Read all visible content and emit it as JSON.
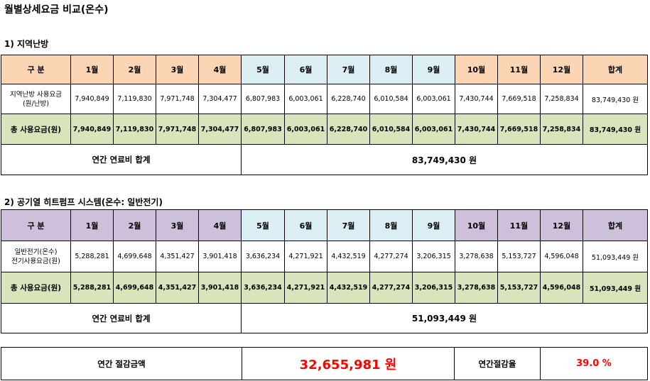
{
  "title": "월별상세요금 비교(온수)",
  "columns": [
    "구 분",
    "1월",
    "2월",
    "3월",
    "4월",
    "5월",
    "6월",
    "7월",
    "8월",
    "9월",
    "10월",
    "11월",
    "12월",
    "합계"
  ],
  "colors": {
    "header_peach": "#fcd5b4",
    "header_blue": "#daeef3",
    "header_purple": "#ccc0da",
    "total_row_green": "#d8e4bc",
    "highlight_red": "#ff0000"
  },
  "section1": {
    "title": "1) 지역난방",
    "data_row": {
      "label_line1": "지역난방  사용요금",
      "label_line2": "(원/난방)",
      "values": [
        "7,940,849",
        "7,119,830",
        "7,971,748",
        "7,304,477",
        "6,807,983",
        "6,003,061",
        "6,228,740",
        "6,010,584",
        "6,003,061",
        "7,430,744",
        "7,669,518",
        "7,258,834",
        "83,749,430 원"
      ]
    },
    "total_row": {
      "label": "총 사용요금(원)",
      "values": [
        "7,940,849",
        "7,119,830",
        "7,971,748",
        "7,304,477",
        "6,807,983",
        "6,003,061",
        "6,228,740",
        "6,010,584",
        "6,003,061",
        "7,430,744",
        "7,669,518",
        "7,258,834",
        "83,749,430 원"
      ]
    },
    "annual": {
      "label": "연간  연료비  합계",
      "value": "83,749,430  원"
    }
  },
  "section2": {
    "title": "2) 공기열 히트펌프 시스템(온수: 일반전기)",
    "data_row": {
      "label_line1": "일반전기(온수)",
      "label_line2": "전기사용요금(원)",
      "values": [
        "5,288,281",
        "4,699,648",
        "4,351,427",
        "3,901,418",
        "3,636,234",
        "4,271,921",
        "4,432,519",
        "4,277,274",
        "3,206,315",
        "3,278,638",
        "5,153,727",
        "4,596,048",
        "51,093,449 원"
      ]
    },
    "total_row": {
      "label": "총 사용요금(원)",
      "values": [
        "5,288,281",
        "4,699,648",
        "4,351,427",
        "3,901,418",
        "3,636,234",
        "4,271,921",
        "4,432,519",
        "4,277,274",
        "3,206,315",
        "3,278,638",
        "5,153,727",
        "4,596,048",
        "51,093,449 원"
      ]
    },
    "annual": {
      "label": "연간  연료비  합계",
      "value": "51,093,449  원"
    }
  },
  "saving": {
    "amount_label": "연간  절감금액",
    "amount_value": "32,655,981  원",
    "rate_label": "연간절감율",
    "rate_value": "39.0  %"
  }
}
